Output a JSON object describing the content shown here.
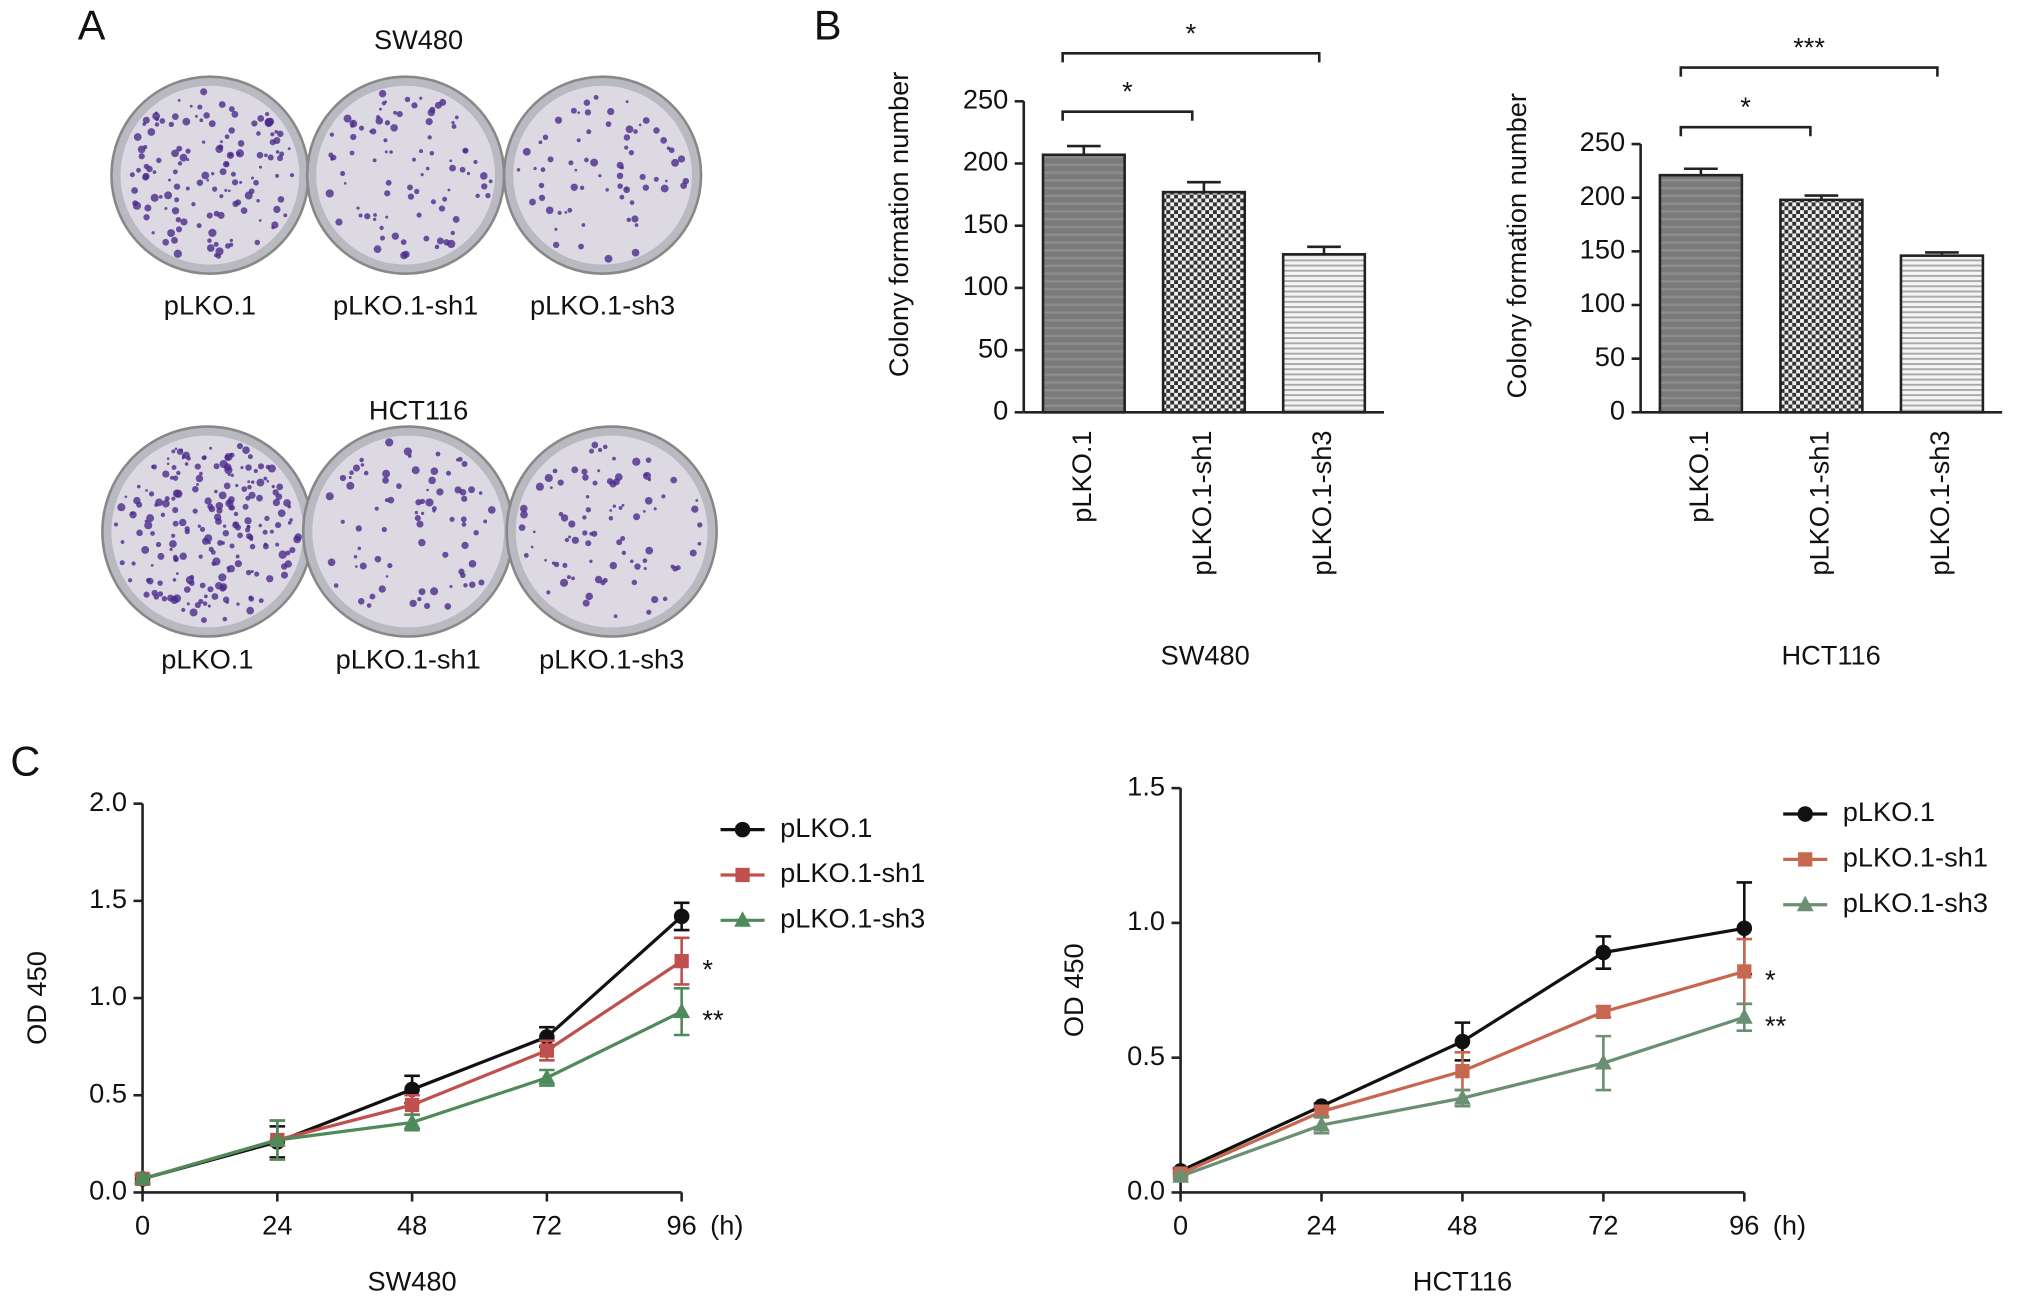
{
  "panel_labels": [
    "A",
    "B",
    "C"
  ],
  "photo_panel": {
    "groups": [
      {
        "title": "SW480",
        "labels": [
          "pLKO.1",
          "pLKO.1-sh1",
          "pLKO.1-sh3"
        ]
      },
      {
        "title": "HCT116",
        "labels": [
          "pLKO.1",
          "pLKO.1-sh1",
          "pLKO.1-sh3"
        ]
      }
    ]
  },
  "chart_data": [
    {
      "type": "bar",
      "ylabel": "Colony formation number",
      "xlabel": "SW480",
      "categories": [
        "pLKO.1",
        "pLKO.1-sh1",
        "pLKO.1-sh3"
      ],
      "values": [
        207,
        177,
        127
      ],
      "errors": [
        7,
        8,
        6
      ],
      "ylim": [
        0,
        250
      ],
      "yticks": [
        0,
        50,
        100,
        150,
        200,
        250
      ],
      "annotations": [
        "*",
        "*"
      ]
    },
    {
      "type": "bar",
      "ylabel": "Colony formation number",
      "xlabel": "HCT116",
      "categories": [
        "pLKO.1",
        "pLKO.1-sh1",
        "pLKO.1-sh3"
      ],
      "values": [
        221,
        198,
        146
      ],
      "errors": [
        6,
        4,
        3
      ],
      "ylim": [
        0,
        250
      ],
      "yticks": [
        0,
        50,
        100,
        150,
        200,
        250
      ],
      "annotations": [
        "*",
        "***"
      ]
    },
    {
      "type": "line",
      "ylabel": "OD 450",
      "xlabel": "SW480",
      "xunit": "(h)",
      "x": [
        0,
        24,
        48,
        72,
        96
      ],
      "xlim": [
        0,
        96
      ],
      "xticks": [
        0,
        24,
        48,
        72,
        96
      ],
      "ylim": [
        0,
        2
      ],
      "yticks": [
        {
          "value": 0,
          "label": "0.0"
        },
        0.5,
        {
          "value": 1,
          "label": "1.0"
        },
        1.5,
        {
          "value": 2,
          "label": "2.0"
        }
      ],
      "series": [
        {
          "name": "pLKO.1",
          "color": "#111111",
          "marker": "circle",
          "values": [
            0.07,
            0.26,
            0.53,
            0.8,
            1.42
          ],
          "errors": [
            0.02,
            0.08,
            0.07,
            0.05,
            0.07
          ]
        },
        {
          "name": "pLKO.1-sh1",
          "color": "#c0504d",
          "marker": "square",
          "values": [
            0.07,
            0.27,
            0.45,
            0.73,
            1.19
          ],
          "errors": [
            0.02,
            0.1,
            0.05,
            0.05,
            0.12
          ],
          "annotation": "*"
        },
        {
          "name": "pLKO.1-sh3",
          "color": "#4f8a5b",
          "marker": "triangle",
          "values": [
            0.07,
            0.27,
            0.36,
            0.59,
            0.93
          ],
          "errors": [
            0.02,
            0.1,
            0.04,
            0.04,
            0.12
          ],
          "annotation": "**"
        }
      ]
    },
    {
      "type": "line",
      "ylabel": "OD 450",
      "xlabel": "HCT116",
      "xunit": "(h)",
      "x": [
        0,
        24,
        48,
        72,
        96
      ],
      "xlim": [
        0,
        96
      ],
      "xticks": [
        0,
        24,
        48,
        72,
        96
      ],
      "ylim": [
        0,
        1.5
      ],
      "yticks": [
        {
          "value": 0,
          "label": "0.0"
        },
        0.5,
        {
          "value": 1,
          "label": "1.0"
        },
        1.5
      ],
      "series": [
        {
          "name": "pLKO.1",
          "color": "#111111",
          "marker": "circle",
          "values": [
            0.08,
            0.32,
            0.56,
            0.89,
            0.98
          ],
          "errors": [
            0.01,
            0.01,
            0.07,
            0.06,
            0.17
          ]
        },
        {
          "name": "pLKO.1-sh1",
          "color": "#c8674f",
          "marker": "square",
          "values": [
            0.07,
            0.3,
            0.45,
            0.67,
            0.82
          ],
          "errors": [
            0.01,
            0.02,
            0.07,
            0.02,
            0.12
          ],
          "annotation": "*"
        },
        {
          "name": "pLKO.1-sh3",
          "color": "#6a8f72",
          "marker": "triangle",
          "values": [
            0.06,
            0.25,
            0.35,
            0.48,
            0.65
          ],
          "errors": [
            0.01,
            0.03,
            0.03,
            0.1,
            0.05
          ],
          "annotation": "**"
        }
      ]
    }
  ]
}
